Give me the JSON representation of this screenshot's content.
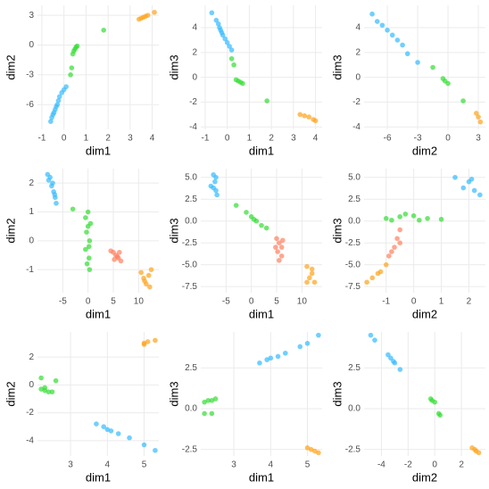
{
  "chart_data": [
    {
      "type": "scatter",
      "xlabel": "dim1",
      "ylabel": "dim2",
      "xlim": [
        -1.2,
        4.3
      ],
      "ylim": [
        -8.5,
        4
      ],
      "xticks": [
        -1,
        0,
        1,
        2,
        3,
        4
      ],
      "yticks": [
        -6,
        -3,
        0,
        3
      ],
      "grid": true,
      "series": [
        {
          "color": "#33bbff",
          "x": [
            -0.6,
            -0.55,
            -0.5,
            -0.45,
            -0.4,
            -0.35,
            -0.3,
            -0.25,
            -0.2,
            -0.1,
            0.0,
            0.1
          ],
          "y": [
            -7.7,
            -7.3,
            -7.0,
            -6.8,
            -6.5,
            -6.2,
            -6.0,
            -5.6,
            -5.2,
            -4.8,
            -4.5,
            -4.2
          ]
        },
        {
          "color": "#33dd33",
          "x": [
            0.3,
            0.35,
            0.4,
            0.45,
            0.5,
            0.55,
            0.6,
            1.8
          ],
          "y": [
            -3.0,
            -2.3,
            -0.9,
            -0.6,
            -0.4,
            -0.2,
            -0.1,
            1.5
          ]
        },
        {
          "color": "#ffa31a",
          "x": [
            3.4,
            3.5,
            3.6,
            3.7,
            3.8,
            4.1
          ],
          "y": [
            2.6,
            2.7,
            2.8,
            2.9,
            3.0,
            3.3
          ]
        }
      ]
    },
    {
      "type": "scatter",
      "xlabel": "dim1",
      "ylabel": "dim3",
      "xlim": [
        -1.2,
        4.3
      ],
      "ylim": [
        -4.2,
        5.8
      ],
      "xticks": [
        -1,
        0,
        1,
        2,
        3,
        4
      ],
      "yticks": [
        -4,
        -2,
        0,
        2,
        4
      ],
      "grid": true,
      "series": [
        {
          "color": "#33bbff",
          "x": [
            -0.7,
            -0.5,
            -0.4,
            -0.35,
            -0.3,
            -0.25,
            -0.2,
            -0.1,
            0.0,
            0.1,
            0.2
          ],
          "y": [
            5.2,
            4.6,
            4.3,
            4.0,
            3.8,
            3.6,
            3.4,
            3.1,
            2.8,
            2.5,
            2.2
          ]
        },
        {
          "color": "#33dd33",
          "x": [
            0.2,
            0.3,
            0.4,
            0.5,
            0.6,
            0.7,
            1.8
          ],
          "y": [
            1.5,
            1.0,
            -0.2,
            -0.3,
            -0.4,
            -0.5,
            -1.9
          ]
        },
        {
          "color": "#ffa31a",
          "x": [
            3.3,
            3.5,
            3.7,
            3.9,
            4.0
          ],
          "y": [
            -3.0,
            -3.1,
            -3.2,
            -3.4,
            -3.5
          ]
        }
      ]
    },
    {
      "type": "scatter",
      "xlabel": "dim2",
      "ylabel": "dim3",
      "xlim": [
        -8.3,
        3.7
      ],
      "ylim": [
        -4.2,
        5.8
      ],
      "xticks": [
        -6,
        -3,
        0,
        3
      ],
      "yticks": [
        -4,
        -2,
        0,
        2,
        4
      ],
      "grid": true,
      "series": [
        {
          "color": "#33bbff",
          "x": [
            -7.5,
            -7,
            -6.5,
            -6,
            -5.5,
            -5,
            -4.5,
            -4,
            -3
          ],
          "y": [
            5.1,
            4.5,
            4.2,
            3.8,
            3.4,
            3.0,
            2.6,
            1.9,
            1.2
          ]
        },
        {
          "color": "#33dd33",
          "x": [
            -1.5,
            -0.5,
            -0.3,
            0,
            1.5
          ],
          "y": [
            0.8,
            -0.1,
            -0.3,
            -0.5,
            -1.9
          ]
        },
        {
          "color": "#ffa31a",
          "x": [
            2.8,
            3,
            3.2
          ],
          "y": [
            -2.9,
            -3.2,
            -3.6
          ]
        }
      ]
    },
    {
      "type": "scatter",
      "xlabel": "dim1",
      "ylabel": "dim2",
      "xlim": [
        -10,
        14
      ],
      "ylim": [
        -1.8,
        2.5
      ],
      "xticks": [
        -5,
        0,
        5,
        10
      ],
      "yticks": [
        -1,
        0,
        1,
        2
      ],
      "grid": true,
      "series": [
        {
          "color": "#33bbff",
          "x": [
            -8,
            -7.5,
            -7,
            -7.2,
            -6.8,
            -6.5,
            -6.3,
            -7.8,
            -6.6
          ],
          "y": [
            2.3,
            2.2,
            2.0,
            1.9,
            1.7,
            1.5,
            1.3,
            2.1,
            1.6
          ]
        },
        {
          "color": "#33dd33",
          "x": [
            -3,
            0,
            -0.5,
            0.5,
            -0.3,
            0.3,
            -0.5,
            0.2,
            -0.2,
            0.3,
            0,
            0.2
          ],
          "y": [
            1.1,
            1.0,
            0.8,
            0.6,
            0.3,
            0.0,
            -0.3,
            -0.6,
            -0.8,
            -1.0,
            0.5,
            -0.2
          ]
        },
        {
          "color": "#ff8060",
          "x": [
            4.5,
            5,
            5.5,
            6,
            6.5,
            5.2,
            6.2,
            5.8
          ],
          "y": [
            -0.35,
            -0.4,
            -0.5,
            -0.6,
            -0.7,
            -0.65,
            -0.4,
            -0.55
          ]
        },
        {
          "color": "#ffa31a",
          "x": [
            10.5,
            11,
            11.5,
            12,
            12.5,
            11.2,
            12.2
          ],
          "y": [
            -1.1,
            -1.3,
            -1.5,
            -1.2,
            -1.0,
            -1.4,
            -1.6
          ]
        }
      ]
    },
    {
      "type": "scatter",
      "xlabel": "dim1",
      "ylabel": "dim3",
      "xlim": [
        -10,
        14
      ],
      "ylim": [
        -8.2,
        6
      ],
      "xticks": [
        -5,
        0,
        5,
        10
      ],
      "yticks": [
        {
          "value": -7.5,
          "label": "-7.5"
        },
        {
          "value": -5,
          "label": "-5.0"
        },
        {
          "value": -2.5,
          "label": "-2.5"
        },
        {
          "value": 0,
          "label": "0.0"
        },
        {
          "value": 2.5,
          "label": "2.5"
        },
        {
          "value": 5,
          "label": "5.0"
        }
      ],
      "grid": true,
      "series": [
        {
          "color": "#33bbff",
          "x": [
            -7.5,
            -7,
            -8,
            -7.5,
            -7,
            -6.8,
            -7.2
          ],
          "y": [
            5.3,
            5.0,
            4.0,
            3.8,
            3.5,
            3.0,
            4.5
          ]
        },
        {
          "color": "#33dd33",
          "x": [
            -3,
            -1,
            0,
            1,
            2,
            3,
            0.5
          ],
          "y": [
            1.8,
            1.0,
            0.5,
            0.0,
            -0.5,
            -0.8,
            0.2
          ]
        },
        {
          "color": "#ff8060",
          "x": [
            5,
            5.5,
            6,
            5.2,
            6,
            5.5,
            4.8,
            6.2
          ],
          "y": [
            -2,
            -2.5,
            -3,
            -3.5,
            -4,
            -4.5,
            -3.0,
            -2.2
          ]
        },
        {
          "color": "#ffa31a",
          "x": [
            11,
            12,
            11.5,
            12.5,
            11,
            12
          ],
          "y": [
            -5.2,
            -5.5,
            -6.5,
            -7.0,
            -7.0,
            -6.0
          ]
        }
      ]
    },
    {
      "type": "scatter",
      "xlabel": "dim2",
      "ylabel": "dim3",
      "xlim": [
        -1.8,
        2.6
      ],
      "ylim": [
        -8.2,
        6
      ],
      "xticks": [
        -1,
        0,
        1,
        2
      ],
      "yticks": [
        {
          "value": -7.5,
          "label": "-7.5"
        },
        {
          "value": -5,
          "label": "-5.0"
        },
        {
          "value": -2.5,
          "label": "-2.5"
        },
        {
          "value": 0,
          "label": "0.0"
        },
        {
          "value": 2.5,
          "label": "2.5"
        },
        {
          "value": 5,
          "label": "5.0"
        }
      ],
      "grid": true,
      "series": [
        {
          "color": "#33bbff",
          "x": [
            1.5,
            2,
            2.2,
            2.4,
            1.8,
            2.1
          ],
          "y": [
            5.0,
            4.5,
            3.5,
            3.0,
            3.8,
            4.8
          ]
        },
        {
          "color": "#33dd33",
          "x": [
            -1,
            -0.5,
            0,
            0.5,
            1,
            -0.8,
            0.2,
            -0.3
          ],
          "y": [
            0.3,
            0.5,
            0.6,
            0.3,
            0.2,
            0.1,
            0.1,
            0.8
          ]
        },
        {
          "color": "#ff8060",
          "x": [
            -0.5,
            -0.6,
            -0.7,
            -0.8,
            -0.5,
            -0.9
          ],
          "y": [
            -1,
            -2,
            -3,
            -3.5,
            -2.5,
            -4
          ]
        },
        {
          "color": "#ffa31a",
          "x": [
            -1,
            -1.2,
            -1.5,
            -1.7,
            -1.3
          ],
          "y": [
            -5,
            -5.8,
            -6.5,
            -7.0,
            -6.0
          ]
        }
      ]
    },
    {
      "type": "scatter",
      "xlabel": "dim1",
      "ylabel": "dim2",
      "xlim": [
        2.1,
        5.4
      ],
      "ylim": [
        -5.1,
        3.8
      ],
      "xticks": [
        3,
        4,
        5
      ],
      "yticks": [
        -4,
        -2,
        0,
        2
      ],
      "grid": true,
      "series": [
        {
          "color": "#33dd33",
          "x": [
            2.2,
            2.2,
            2.3,
            2.4,
            2.5,
            2.6,
            2.3
          ],
          "y": [
            0.5,
            -0.3,
            -0.4,
            -0.5,
            -0.5,
            0.3,
            -0.2
          ]
        },
        {
          "color": "#33bbff",
          "x": [
            3.7,
            3.9,
            4.0,
            4.1,
            4.3,
            4.6,
            5.0,
            5.3
          ],
          "y": [
            -2.8,
            -3.0,
            -3.2,
            -3.3,
            -3.5,
            -3.8,
            -4.3,
            -4.7
          ]
        },
        {
          "color": "#ffa31a",
          "x": [
            5.0,
            5.1,
            5.0,
            5.3
          ],
          "y": [
            3.0,
            3.1,
            2.9,
            3.2
          ]
        }
      ]
    },
    {
      "type": "scatter",
      "xlabel": "dim1",
      "ylabel": "dim3",
      "xlim": [
        2.1,
        5.4
      ],
      "ylim": [
        -2.9,
        4.7
      ],
      "xticks": [
        3,
        4,
        5
      ],
      "yticks": [
        {
          "value": -2.5,
          "label": "-2.5"
        },
        {
          "value": 0,
          "label": "0.0"
        },
        {
          "value": 2.5,
          "label": "2.5"
        }
      ],
      "grid": true,
      "series": [
        {
          "color": "#33dd33",
          "x": [
            2.2,
            2.3,
            2.4,
            2.5,
            2.2,
            2.4
          ],
          "y": [
            0.4,
            0.5,
            0.5,
            0.6,
            -0.3,
            -0.3
          ]
        },
        {
          "color": "#33bbff",
          "x": [
            3.7,
            3.9,
            4.0,
            4.2,
            4.4,
            4.8,
            5.0,
            5.3
          ],
          "y": [
            2.8,
            3.0,
            3.1,
            3.2,
            3.4,
            3.8,
            4.0,
            4.5
          ]
        },
        {
          "color": "#ffa31a",
          "x": [
            5.0,
            5.1,
            5.2,
            5.3
          ],
          "y": [
            -2.4,
            -2.5,
            -2.6,
            -2.7
          ]
        }
      ]
    },
    {
      "type": "scatter",
      "xlabel": "dim2",
      "ylabel": "dim3",
      "xlim": [
        -5.3,
        3.8
      ],
      "ylim": [
        -2.9,
        4.7
      ],
      "xticks": [
        -4,
        -2,
        0,
        2
      ],
      "yticks": [
        {
          "value": -2.5,
          "label": "-2.5"
        },
        {
          "value": 0,
          "label": "0.0"
        },
        {
          "value": 2.5,
          "label": "2.5"
        }
      ],
      "grid": true,
      "series": [
        {
          "color": "#33bbff",
          "x": [
            -4.8,
            -4.5,
            -3.5,
            -3.3,
            -3.1,
            -3.0,
            -2.6
          ],
          "y": [
            4.5,
            4.2,
            3.3,
            3.1,
            2.9,
            2.8,
            2.4
          ]
        },
        {
          "color": "#33dd33",
          "x": [
            -0.3,
            -0.2,
            0,
            0.3,
            0.4
          ],
          "y": [
            0.6,
            0.5,
            0.4,
            -0.3,
            -0.4
          ]
        },
        {
          "color": "#ffa31a",
          "x": [
            2.8,
            3.0,
            3.1,
            3.3
          ],
          "y": [
            -2.4,
            -2.5,
            -2.6,
            -2.7
          ]
        }
      ]
    }
  ]
}
